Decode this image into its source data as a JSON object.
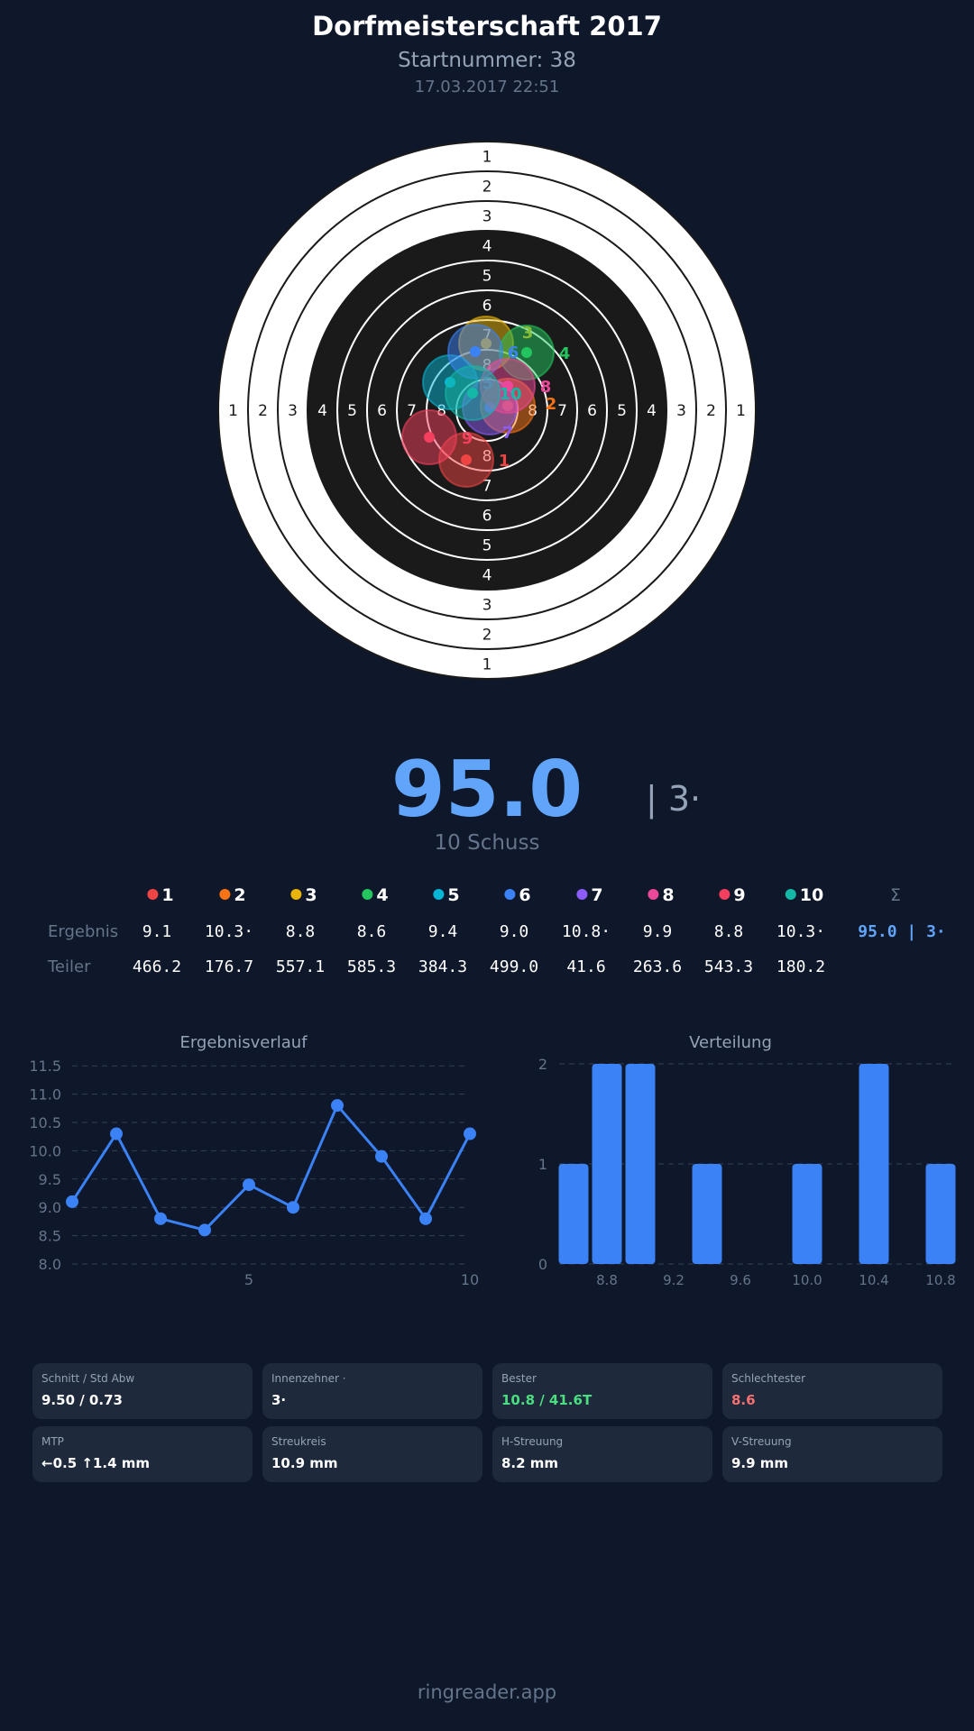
{
  "header": {
    "title": "Dorfmeisterschaft 2017",
    "startnumber": "Startnummer: 38",
    "datetime": "17.03.2017 22:51"
  },
  "target": {
    "ring_labels": [
      "1",
      "2",
      "3",
      "4",
      "5",
      "6",
      "7",
      "8"
    ],
    "shots": [
      {
        "n": "1",
        "color": "#ef4444",
        "dx": -23,
        "dy": 55
      },
      {
        "n": "2",
        "color": "#f97316",
        "dx": 23,
        "dy": -5
      },
      {
        "n": "3",
        "color": "#eab308",
        "dx": -1,
        "dy": -74
      },
      {
        "n": "4",
        "color": "#22c55e",
        "dx": 44,
        "dy": -64
      },
      {
        "n": "5",
        "color": "#06b6d4",
        "dx": -41,
        "dy": -31
      },
      {
        "n": "6",
        "color": "#3b82f6",
        "dx": -13,
        "dy": -65
      },
      {
        "n": "7",
        "color": "#8b5cf6",
        "dx": 3,
        "dy": -3
      },
      {
        "n": "8",
        "color": "#ec4899",
        "dx": 23,
        "dy": -27
      },
      {
        "n": "9",
        "color": "#f43f5e",
        "dx": -64,
        "dy": 30
      },
      {
        "n": "10",
        "color": "#14b8a6",
        "dx": -16,
        "dy": -19
      }
    ]
  },
  "summary": {
    "total": "95.0",
    "inner_tens": "| 3·",
    "shots_label": "10 Schuss"
  },
  "table": {
    "sum_header": "Σ",
    "row_labels": [
      "Ergebnis",
      "Teiler"
    ],
    "results": [
      "9.1",
      "10.3·",
      "8.8",
      "8.6",
      "9.4",
      "9.0",
      "10.8·",
      "9.9",
      "8.8",
      "10.3·"
    ],
    "teiler": [
      "466.2",
      "176.7",
      "557.1",
      "585.3",
      "384.3",
      "499.0",
      "41.6",
      "263.6",
      "543.3",
      "180.2"
    ],
    "sum": "95.0 | 3·"
  },
  "chart_data": [
    {
      "type": "line",
      "title": "Ergebnisverlauf",
      "x": [
        1,
        2,
        3,
        4,
        5,
        6,
        7,
        8,
        9,
        10
      ],
      "values": [
        9.1,
        10.3,
        8.8,
        8.6,
        9.4,
        9.0,
        10.8,
        9.9,
        8.8,
        10.3
      ],
      "ylim": [
        8.0,
        11.5
      ],
      "yticks": [
        "8.0",
        "8.5",
        "9.0",
        "9.5",
        "10.0",
        "10.5",
        "11.0",
        "11.5"
      ],
      "xticks": [
        "5",
        "10"
      ],
      "grid": true,
      "color": "#3b82f6"
    },
    {
      "type": "bar",
      "title": "Verteilung",
      "categories": [
        8.6,
        8.8,
        9.0,
        9.2,
        9.4,
        9.6,
        9.8,
        10.0,
        10.2,
        10.4,
        10.6,
        10.8
      ],
      "values": [
        1,
        2,
        2,
        0,
        1,
        0,
        0,
        1,
        0,
        2,
        0,
        1
      ],
      "ylim": [
        0,
        2
      ],
      "yticks": [
        "0",
        "1",
        "2"
      ],
      "xticks": [
        "8.8",
        "9.2",
        "9.6",
        "10.0",
        "10.4",
        "10.8"
      ],
      "grid": true,
      "color": "#3b82f6"
    }
  ],
  "stats": [
    {
      "label": "Schnitt / Std Abw",
      "value": "9.50 / 0.73",
      "color": "#ffffff"
    },
    {
      "label": "Innenzehner ·",
      "value": "3·",
      "color": "#ffffff"
    },
    {
      "label": "Bester",
      "value": "10.8 / 41.6T",
      "color": "#4ade80"
    },
    {
      "label": "Schlechtester",
      "value": "8.6",
      "color": "#f87171"
    },
    {
      "label": "MTP",
      "value": "←0.5 ↑1.4 mm",
      "color": "#ffffff"
    },
    {
      "label": "Streukreis",
      "value": "10.9 mm",
      "color": "#ffffff"
    },
    {
      "label": "H-Streuung",
      "value": "8.2 mm",
      "color": "#ffffff"
    },
    {
      "label": "V-Streuung",
      "value": "9.9 mm",
      "color": "#ffffff"
    }
  ],
  "footer": "ringreader.app"
}
